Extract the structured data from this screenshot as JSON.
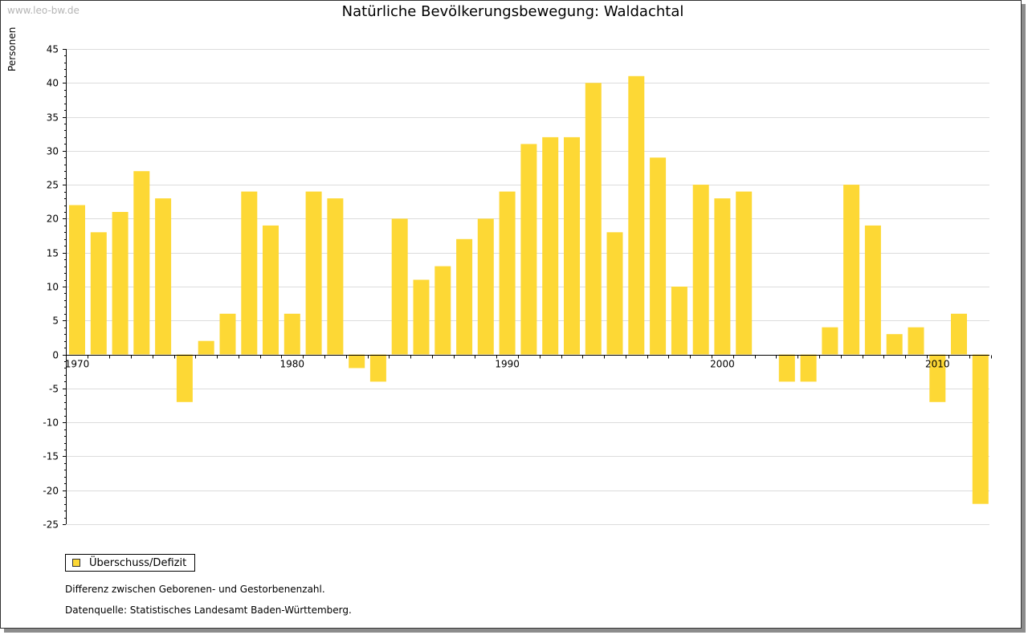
{
  "watermark": "www.leo-bw.de",
  "title": "Natürliche Bevölkerungsbewegung: Waldachtal",
  "legend_label": "Überschuss/Defizit",
  "note": "Differenz zwischen Geborenen- und Gestorbenenzahl.",
  "source": "Datenquelle: Statistisches Landesamt Baden-Württemberg.",
  "colors": {
    "bar": "#fdd835",
    "grid": "#dcdcdc",
    "axis": "#000000"
  },
  "chart_data": {
    "type": "bar",
    "title": "Natürliche Bevölkerungsbewegung: Waldachtal",
    "xlabel": "",
    "ylabel": "Personen",
    "ylim": [
      -25,
      45
    ],
    "yticks": [
      45,
      40,
      35,
      30,
      25,
      20,
      15,
      10,
      5,
      0,
      -5,
      -10,
      -15,
      -20,
      -25
    ],
    "xtick_labels": [
      "1970",
      "1980",
      "1990",
      "2000",
      "2010"
    ],
    "legend": "Überschuss/Defizit",
    "series": [
      {
        "name": "Überschuss/Defizit",
        "categories": [
          1970,
          1971,
          1972,
          1973,
          1974,
          1975,
          1976,
          1977,
          1978,
          1979,
          1980,
          1981,
          1982,
          1983,
          1984,
          1985,
          1986,
          1987,
          1988,
          1989,
          1990,
          1991,
          1992,
          1993,
          1994,
          1995,
          1996,
          1997,
          1998,
          1999,
          2000,
          2001,
          2002,
          2003,
          2004,
          2005,
          2006,
          2007,
          2008,
          2009,
          2010,
          2011,
          2012
        ],
        "values": [
          22,
          18,
          21,
          27,
          23,
          -7,
          2,
          6,
          24,
          19,
          6,
          24,
          23,
          -2,
          -4,
          20,
          11,
          13,
          17,
          20,
          24,
          31,
          32,
          32,
          40,
          18,
          41,
          29,
          10,
          25,
          23,
          24,
          0,
          -4,
          -4,
          4,
          25,
          19,
          3,
          4,
          -7,
          6,
          -22
        ]
      }
    ]
  }
}
